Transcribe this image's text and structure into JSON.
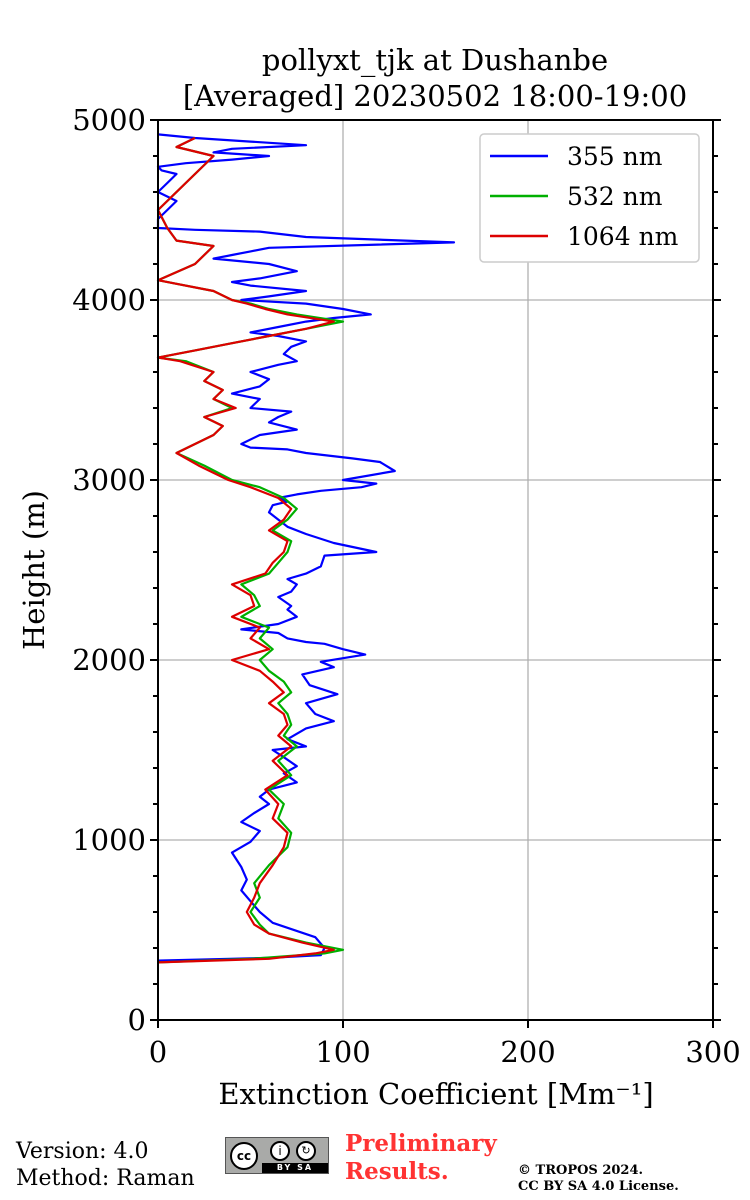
{
  "chart_data": {
    "type": "line",
    "orientation": "vertical-profile",
    "title": [
      "pollyxt_tjk at Dushanbe",
      "[Averaged] 20230502 18:00-19:00"
    ],
    "xlabel": "Extinction Coefficient [Mm⁻¹]",
    "ylabel": "Height (m)",
    "xlim": [
      0,
      300
    ],
    "ylim": [
      0,
      5000
    ],
    "xticks": [
      0,
      100,
      200,
      300
    ],
    "yticks": [
      0,
      1000,
      2000,
      3000,
      4000,
      5000
    ],
    "grid": true,
    "legend_position": "top-right",
    "series": [
      {
        "name": "355 nm",
        "color": "#0000ff",
        "x": [
          0,
          60,
          88,
          90,
          85,
          62,
          55,
          50,
          45,
          48,
          45,
          40,
          50,
          55,
          45,
          52,
          60,
          55,
          60,
          75,
          68,
          75,
          68,
          62,
          80,
          70,
          80,
          95,
          85,
          80,
          97,
          82,
          78,
          95,
          88,
          112,
          100,
          90,
          80,
          70,
          65,
          45,
          65,
          75,
          70,
          72,
          65,
          72,
          75,
          70,
          80,
          88,
          90,
          118,
          95,
          80,
          70,
          65,
          60,
          62,
          70,
          65,
          75,
          88,
          110,
          118,
          100,
          128,
          120,
          105,
          80,
          70,
          50,
          45,
          55,
          75,
          60,
          65,
          72,
          50,
          55,
          40,
          55,
          60,
          50,
          65,
          75,
          68,
          72,
          80,
          65,
          50,
          65,
          80,
          95,
          115,
          100,
          80,
          45,
          60,
          80,
          50,
          40,
          55,
          75,
          60,
          30,
          40,
          50,
          60,
          160,
          80,
          55,
          20,
          0,
          0,
          5,
          10,
          0,
          5,
          10,
          2,
          0,
          15,
          40,
          60,
          30,
          40,
          80,
          50,
          20,
          0
        ],
        "y": [
          330,
          345,
          360,
          400,
          460,
          540,
          600,
          660,
          720,
          780,
          850,
          930,
          990,
          1050,
          1100,
          1150,
          1200,
          1240,
          1280,
          1320,
          1370,
          1410,
          1460,
          1500,
          1520,
          1560,
          1620,
          1660,
          1700,
          1760,
          1810,
          1860,
          1920,
          1960,
          1990,
          2030,
          2060,
          2090,
          2100,
          2120,
          2150,
          2170,
          2200,
          2240,
          2280,
          2300,
          2350,
          2380,
          2420,
          2450,
          2480,
          2520,
          2580,
          2600,
          2650,
          2700,
          2740,
          2780,
          2820,
          2860,
          2880,
          2900,
          2920,
          2940,
          2960,
          2980,
          3000,
          3050,
          3100,
          3120,
          3150,
          3170,
          3180,
          3200,
          3250,
          3280,
          3320,
          3350,
          3380,
          3400,
          3450,
          3480,
          3520,
          3560,
          3600,
          3640,
          3660,
          3700,
          3740,
          3770,
          3800,
          3820,
          3850,
          3880,
          3900,
          3920,
          3950,
          3980,
          4000,
          4020,
          4050,
          4080,
          4100,
          4120,
          4160,
          4200,
          4230,
          4250,
          4270,
          4290,
          4320,
          4350,
          4380,
          4390,
          4400,
          4450,
          4500,
          4550,
          4600,
          4650,
          4700,
          4720,
          4740,
          4760,
          4780,
          4800,
          4820,
          4840,
          4860,
          4880,
          4900,
          4920
        ]
      },
      {
        "name": "532 nm",
        "color": "#00b000",
        "x": [
          0,
          50,
          90,
          100,
          80,
          60,
          55,
          50,
          55,
          52,
          60,
          70,
          72,
          65,
          68,
          60,
          72,
          65,
          75,
          68,
          72,
          70,
          65,
          72,
          68,
          60,
          55,
          62,
          55,
          60,
          45,
          55,
          52,
          45,
          60,
          65,
          70,
          72,
          62,
          70,
          75,
          68,
          55,
          40,
          25,
          10,
          20,
          30,
          35,
          25,
          40,
          30,
          35,
          25,
          30,
          20,
          15,
          0,
          20,
          40,
          60,
          80,
          100,
          75,
          60,
          50,
          40,
          30,
          10,
          0,
          20,
          30,
          10,
          5,
          0,
          20,
          30,
          10,
          20
        ],
        "y": [
          320,
          340,
          370,
          390,
          430,
          480,
          530,
          600,
          680,
          760,
          860,
          960,
          1040,
          1120,
          1200,
          1280,
          1360,
          1440,
          1520,
          1580,
          1640,
          1700,
          1760,
          1820,
          1880,
          1940,
          2000,
          2060,
          2120,
          2180,
          2240,
          2300,
          2360,
          2420,
          2480,
          2540,
          2600,
          2660,
          2720,
          2780,
          2840,
          2900,
          2960,
          3000,
          3080,
          3150,
          3200,
          3250,
          3300,
          3350,
          3400,
          3450,
          3500,
          3550,
          3600,
          3640,
          3660,
          3680,
          3720,
          3760,
          3800,
          3840,
          3880,
          3920,
          3950,
          3980,
          4000,
          4050,
          4090,
          4110,
          4200,
          4300,
          4330,
          4400,
          4500,
          4700,
          4800,
          4850,
          4900
        ]
      },
      {
        "name": "1064 nm",
        "color": "#dd0000",
        "x": [
          0,
          60,
          85,
          95,
          78,
          60,
          52,
          48,
          52,
          55,
          62,
          68,
          70,
          62,
          65,
          58,
          70,
          62,
          72,
          65,
          70,
          68,
          60,
          68,
          62,
          55,
          40,
          60,
          50,
          55,
          40,
          52,
          50,
          40,
          58,
          62,
          68,
          70,
          60,
          68,
          72,
          65,
          50,
          38,
          22,
          10,
          20,
          30,
          35,
          25,
          42,
          30,
          35,
          25,
          30,
          18,
          12,
          0,
          20,
          40,
          60,
          80,
          95,
          70,
          58,
          48,
          40,
          30,
          10,
          0,
          20,
          30,
          10,
          5,
          0,
          20,
          30,
          10,
          20
        ],
        "y": [
          320,
          340,
          370,
          390,
          430,
          480,
          530,
          600,
          680,
          760,
          860,
          960,
          1040,
          1120,
          1200,
          1280,
          1360,
          1440,
          1520,
          1580,
          1640,
          1700,
          1760,
          1820,
          1880,
          1940,
          2000,
          2060,
          2120,
          2180,
          2240,
          2300,
          2360,
          2420,
          2480,
          2540,
          2600,
          2660,
          2720,
          2780,
          2840,
          2900,
          2960,
          3000,
          3080,
          3150,
          3200,
          3250,
          3300,
          3350,
          3400,
          3450,
          3500,
          3550,
          3600,
          3640,
          3660,
          3680,
          3720,
          3760,
          3800,
          3840,
          3880,
          3920,
          3950,
          3980,
          4000,
          4050,
          4090,
          4110,
          4200,
          4300,
          4330,
          4400,
          4500,
          4700,
          4800,
          4850,
          4900
        ]
      }
    ]
  },
  "footer": {
    "version": "Version: 4.0",
    "method": "Method: Raman",
    "preliminary_line1": "Preliminary",
    "preliminary_line2": "Results.",
    "copyright_line1": "© TROPOS 2024.",
    "copyright_line2": "CC BY SA 4.0 License.",
    "cc_badge": {
      "cc": "cc",
      "by": "BY",
      "sa": "SA"
    }
  }
}
